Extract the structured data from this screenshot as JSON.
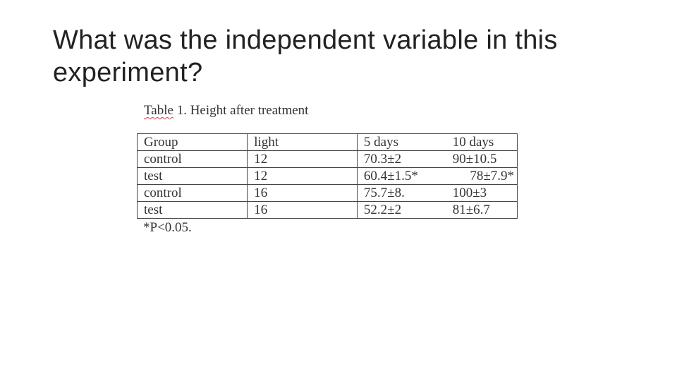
{
  "slide": {
    "title_line1": "What was the independent variable in this",
    "title_line2": "experiment?"
  },
  "table": {
    "caption_prefix": "Table",
    "caption_rest": " 1. Height after treatment",
    "headers": [
      "Group",
      "light",
      "5 days",
      "10 days"
    ],
    "rows": [
      [
        "control",
        "12",
        "70.3±2",
        "90±10.5"
      ],
      [
        "test",
        "12",
        "60.4±1.5*",
        "78±7.9*"
      ],
      [
        "control",
        "16",
        "75.7±8.",
        "100±3"
      ],
      [
        "test",
        "16",
        "52.2±2",
        "81±6.7"
      ]
    ],
    "footnote": "*P<0.05."
  }
}
